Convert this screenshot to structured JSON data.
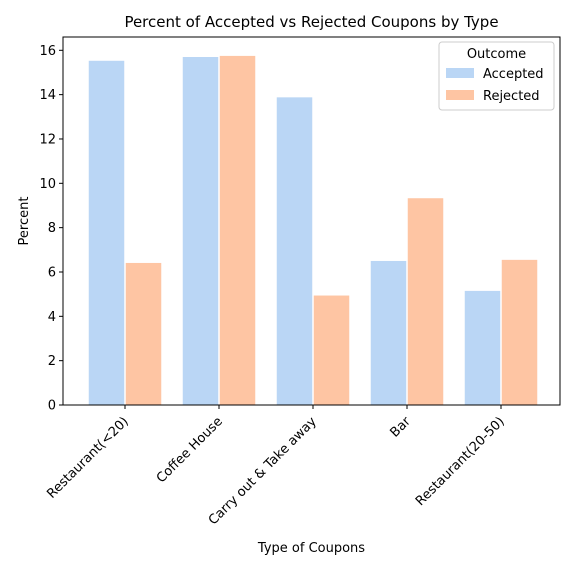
{
  "chart_data": {
    "type": "bar",
    "title": "Percent of Accepted vs Rejected Coupons by Type",
    "xlabel": "Type of Coupons",
    "ylabel": "Percent",
    "categories": [
      "Restaurant(<20)",
      "Coffee House",
      "Carry out & Take away",
      "Bar",
      "Restaurant(20-50)"
    ],
    "series": [
      {
        "name": "Accepted",
        "color": "#bad6f5",
        "values": [
          15.55,
          15.72,
          13.9,
          6.52,
          5.17
        ]
      },
      {
        "name": "Rejected",
        "color": "#fec5a3",
        "values": [
          6.43,
          15.77,
          4.96,
          9.35,
          6.57
        ]
      }
    ],
    "ylim": [
      0,
      16.6
    ],
    "yticks": [
      0,
      2,
      4,
      6,
      8,
      10,
      12,
      14,
      16
    ],
    "grid": false,
    "legend": {
      "title": "Outcome",
      "placement": "top-right"
    }
  }
}
